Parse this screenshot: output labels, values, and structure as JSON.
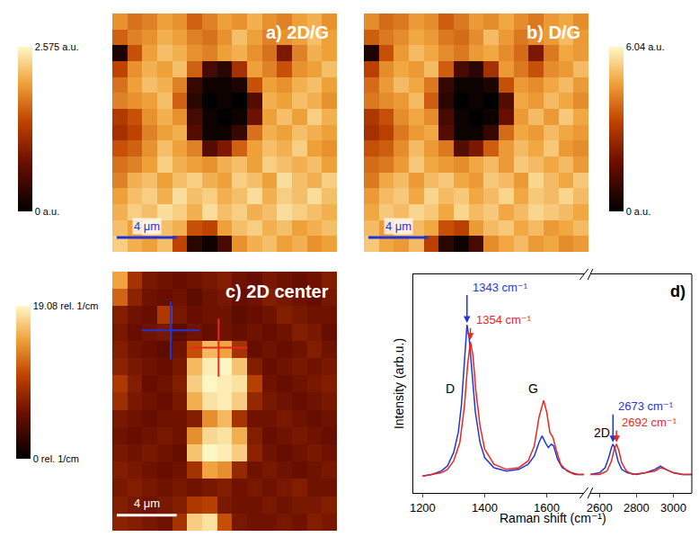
{
  "chart_data": [
    {
      "type": "heatmap",
      "title": "a) 2D/G",
      "xlim": [
        0,
        15
      ],
      "ylim": [
        0,
        15
      ],
      "tick_labels": false,
      "z": [
        [
          1.9,
          1.7,
          1.8,
          2.0,
          1.9,
          1.6,
          1.8,
          2.0,
          1.9,
          2.1,
          1.9,
          1.8,
          2.0,
          2.1,
          1.9
        ],
        [
          1.6,
          1.8,
          1.9,
          2.1,
          2.0,
          1.8,
          1.7,
          1.9,
          2.2,
          2.0,
          1.8,
          1.9,
          2.0,
          2.2,
          2.0
        ],
        [
          0.2,
          1.5,
          2.0,
          2.2,
          2.1,
          1.9,
          1.8,
          2.0,
          2.1,
          1.9,
          1.7,
          0.9,
          1.8,
          2.1,
          2.0
        ],
        [
          1.4,
          1.9,
          2.1,
          2.0,
          2.2,
          1.6,
          0.5,
          0.3,
          1.2,
          2.0,
          1.8,
          1.5,
          1.9,
          2.0,
          2.2
        ],
        [
          1.7,
          2.0,
          2.2,
          2.1,
          1.8,
          0.4,
          0.1,
          0.1,
          0.2,
          1.5,
          2.0,
          1.9,
          2.1,
          2.2,
          2.0
        ],
        [
          1.8,
          1.9,
          2.0,
          2.2,
          1.6,
          0.3,
          0.0,
          0.1,
          0.0,
          0.6,
          2.1,
          2.0,
          2.2,
          2.1,
          1.9
        ],
        [
          1.3,
          1.5,
          1.9,
          2.1,
          1.9,
          0.5,
          0.1,
          0.0,
          0.1,
          0.8,
          2.0,
          2.2,
          2.0,
          2.3,
          2.1
        ],
        [
          1.2,
          1.4,
          1.8,
          2.0,
          2.1,
          0.6,
          0.1,
          0.1,
          0.4,
          1.7,
          2.1,
          2.0,
          2.2,
          2.1,
          2.0
        ],
        [
          1.5,
          1.6,
          1.9,
          2.2,
          2.0,
          1.8,
          0.6,
          0.9,
          1.6,
          2.0,
          2.2,
          2.1,
          2.3,
          2.0,
          1.9
        ],
        [
          1.7,
          1.8,
          2.0,
          2.3,
          2.1,
          2.0,
          1.9,
          2.1,
          2.2,
          2.0,
          2.3,
          2.2,
          2.1,
          2.2,
          2.0
        ],
        [
          1.8,
          2.1,
          2.2,
          2.0,
          2.2,
          2.3,
          2.1,
          2.0,
          2.3,
          2.2,
          2.0,
          2.4,
          2.2,
          2.1,
          2.3
        ],
        [
          2.0,
          2.2,
          2.3,
          2.1,
          2.4,
          2.2,
          2.3,
          2.1,
          2.2,
          2.4,
          2.1,
          2.3,
          2.2,
          2.4,
          2.2
        ],
        [
          2.1,
          2.3,
          2.2,
          2.4,
          2.3,
          2.1,
          2.4,
          2.2,
          2.3,
          2.1,
          2.2,
          2.4,
          2.3,
          2.2,
          2.1
        ],
        [
          2.2,
          2.0,
          2.3,
          2.2,
          2.1,
          1.5,
          1.4,
          2.0,
          2.2,
          2.3,
          2.1,
          2.2,
          2.0,
          2.1,
          2.2
        ],
        [
          2.3,
          2.1,
          2.0,
          2.2,
          1.4,
          0.3,
          0.1,
          0.5,
          1.9,
          2.1,
          2.2,
          2.0,
          2.1,
          1.9,
          2.0
        ]
      ],
      "colorbar": {
        "range": [
          0,
          2.575
        ],
        "ticks": [
          {
            "value": 0,
            "label": "0 a.u."
          },
          {
            "value": 2.575,
            "label": "2.575 a.u."
          }
        ]
      },
      "scale_bar": {
        "length": 4,
        "label": "4 μm",
        "color": "#1f35d8"
      }
    },
    {
      "type": "heatmap",
      "title": "b) D/G",
      "xlim": [
        0,
        15
      ],
      "ylim": [
        0,
        15
      ],
      "tick_labels": false,
      "z": [
        [
          4.4,
          3.9,
          4.1,
          4.6,
          4.4,
          3.7,
          4.1,
          4.6,
          4.4,
          4.8,
          4.4,
          4.1,
          4.6,
          4.8,
          4.4
        ],
        [
          3.7,
          4.1,
          4.4,
          4.8,
          4.6,
          4.1,
          3.9,
          4.4,
          5.1,
          4.6,
          4.1,
          4.4,
          4.6,
          5.1,
          4.6
        ],
        [
          0.5,
          3.5,
          4.6,
          5.1,
          4.8,
          4.4,
          4.1,
          4.6,
          4.8,
          4.4,
          3.9,
          2.1,
          4.1,
          4.8,
          4.6
        ],
        [
          3.2,
          4.4,
          4.8,
          4.6,
          5.1,
          3.7,
          1.2,
          0.7,
          2.8,
          4.6,
          4.1,
          3.5,
          4.4,
          4.6,
          5.1
        ],
        [
          3.9,
          4.6,
          5.1,
          4.8,
          4.1,
          0.9,
          0.2,
          0.2,
          0.5,
          3.5,
          4.6,
          4.4,
          4.8,
          5.1,
          4.6
        ],
        [
          4.1,
          4.4,
          4.6,
          5.1,
          3.7,
          0.7,
          0.0,
          0.2,
          0.0,
          1.4,
          4.8,
          4.6,
          5.1,
          4.8,
          4.4
        ],
        [
          3.0,
          3.5,
          4.4,
          4.8,
          4.4,
          1.2,
          0.2,
          0.0,
          0.2,
          1.8,
          4.6,
          5.1,
          4.6,
          5.3,
          4.8
        ],
        [
          2.8,
          3.2,
          4.1,
          4.6,
          4.8,
          1.4,
          0.2,
          0.2,
          0.9,
          3.9,
          4.8,
          4.6,
          5.1,
          4.8,
          4.6
        ],
        [
          3.5,
          3.7,
          4.4,
          5.1,
          4.6,
          4.1,
          1.4,
          2.1,
          3.7,
          4.6,
          5.1,
          4.8,
          5.3,
          4.6,
          4.4
        ],
        [
          3.9,
          4.1,
          4.6,
          5.3,
          4.8,
          4.6,
          4.4,
          4.8,
          5.1,
          4.6,
          5.3,
          5.1,
          4.8,
          5.1,
          4.6
        ],
        [
          4.1,
          4.8,
          5.1,
          4.6,
          5.1,
          5.3,
          4.8,
          4.6,
          5.3,
          5.1,
          4.6,
          5.5,
          5.1,
          4.8,
          5.3
        ],
        [
          4.6,
          5.1,
          5.3,
          4.8,
          5.5,
          5.1,
          5.3,
          4.8,
          5.1,
          5.5,
          4.8,
          5.3,
          5.1,
          5.5,
          5.1
        ],
        [
          4.8,
          5.3,
          5.1,
          5.5,
          5.3,
          4.8,
          5.5,
          5.1,
          5.3,
          4.8,
          5.1,
          5.5,
          5.3,
          5.1,
          4.8
        ],
        [
          5.1,
          4.6,
          5.3,
          5.1,
          4.8,
          3.5,
          3.2,
          4.6,
          5.1,
          5.3,
          4.8,
          5.1,
          4.6,
          4.8,
          5.1
        ],
        [
          5.3,
          4.8,
          4.6,
          5.1,
          3.2,
          0.7,
          0.2,
          1.2,
          4.4,
          4.8,
          5.1,
          4.6,
          4.8,
          4.4,
          4.6
        ]
      ],
      "colorbar": {
        "range": [
          0,
          6.04
        ],
        "ticks": [
          {
            "value": 0,
            "label": "0 a.u."
          },
          {
            "value": 6.04,
            "label": "6.04 a.u."
          }
        ]
      },
      "scale_bar": {
        "length": 4,
        "label": "4 μm",
        "color": "#1f35d8"
      }
    },
    {
      "type": "heatmap",
      "title": "c) 2D center",
      "xlim": [
        0,
        15
      ],
      "ylim": [
        0,
        15
      ],
      "tick_labels": false,
      "z": [
        [
          15.0,
          9.0,
          6.5,
          6.0,
          5.5,
          6.0,
          6.5,
          7.0,
          6.0,
          5.5,
          6.5,
          6.0,
          5.5,
          6.0,
          7.0
        ],
        [
          12.0,
          7.5,
          6.0,
          5.5,
          6.0,
          5.0,
          6.0,
          6.5,
          5.5,
          6.0,
          7.0,
          6.5,
          6.0,
          5.5,
          6.5
        ],
        [
          7.0,
          6.0,
          5.5,
          9.5,
          6.5,
          5.5,
          6.0,
          6.0,
          5.0,
          5.5,
          6.0,
          7.0,
          6.5,
          6.0,
          6.0
        ],
        [
          6.5,
          5.5,
          6.0,
          6.5,
          5.0,
          6.0,
          5.5,
          6.0,
          5.5,
          6.0,
          5.5,
          6.0,
          7.0,
          6.5,
          5.5
        ],
        [
          7.0,
          6.0,
          5.5,
          5.0,
          6.0,
          11.0,
          16.0,
          15.0,
          9.0,
          5.5,
          6.0,
          5.5,
          6.0,
          7.0,
          6.0
        ],
        [
          7.5,
          6.5,
          6.0,
          5.5,
          6.5,
          16.0,
          18.5,
          19.0,
          16.5,
          7.0,
          5.5,
          6.0,
          6.5,
          6.0,
          6.5
        ],
        [
          9.5,
          7.0,
          5.5,
          6.0,
          7.0,
          17.0,
          19.0,
          18.5,
          18.0,
          10.0,
          6.0,
          5.5,
          6.0,
          6.5,
          7.0
        ],
        [
          8.5,
          6.5,
          6.0,
          5.5,
          6.5,
          15.5,
          18.0,
          18.5,
          17.0,
          8.0,
          6.5,
          6.0,
          5.5,
          6.0,
          6.5
        ],
        [
          6.5,
          6.0,
          5.5,
          6.0,
          6.0,
          7.0,
          14.0,
          16.0,
          9.0,
          6.0,
          6.0,
          6.5,
          6.0,
          5.5,
          6.0
        ],
        [
          6.0,
          5.5,
          6.0,
          6.5,
          6.0,
          14.0,
          17.5,
          18.0,
          15.5,
          7.0,
          5.5,
          6.0,
          6.5,
          6.0,
          5.5
        ],
        [
          6.5,
          6.0,
          6.5,
          6.0,
          5.5,
          16.5,
          19.0,
          18.5,
          17.0,
          7.5,
          6.0,
          5.5,
          6.0,
          6.5,
          6.0
        ],
        [
          7.0,
          6.5,
          6.0,
          5.5,
          6.0,
          9.0,
          15.0,
          14.0,
          8.0,
          6.0,
          6.5,
          6.0,
          5.5,
          6.0,
          6.5
        ],
        [
          6.5,
          7.0,
          6.5,
          6.0,
          6.5,
          6.0,
          6.5,
          7.0,
          6.0,
          6.5,
          6.0,
          6.5,
          7.0,
          6.0,
          6.0
        ],
        [
          7.0,
          6.5,
          6.0,
          6.5,
          7.0,
          9.5,
          10.0,
          6.5,
          6.0,
          6.0,
          6.5,
          6.0,
          6.5,
          6.5,
          7.0
        ],
        [
          7.5,
          7.0,
          6.5,
          6.0,
          9.0,
          17.0,
          18.0,
          11.0,
          6.5,
          6.0,
          6.0,
          6.5,
          6.0,
          7.0,
          6.5
        ]
      ],
      "colorbar": {
        "range": [
          0,
          19.08
        ],
        "ticks": [
          {
            "value": 0,
            "label": "0 rel. 1/cm"
          },
          {
            "value": 19.08,
            "label": "19.08 rel. 1/cm"
          }
        ]
      },
      "scale_bar": {
        "length": 4,
        "label": "4 μm",
        "color": "#ffffff"
      },
      "points": [
        {
          "x": 3.9,
          "y": 3.4,
          "color": "#1f35d8"
        },
        {
          "x": 7.1,
          "y": 4.4,
          "color": "#e8281e"
        }
      ]
    },
    {
      "type": "line",
      "title": "d)",
      "x_label": "Raman shift (cm⁻¹)",
      "y_label": "Intensity (arb.u.)",
      "xlim": [
        1170,
        3100
      ],
      "x_break": [
        1720,
        2550
      ],
      "xticks": [
        1200,
        1400,
        1600,
        2600,
        2800,
        3000
      ],
      "ylim": [
        0,
        1.3
      ],
      "tick_labels": "x",
      "series": [
        {
          "color": "#1f35d8",
          "x": [
            1200,
            1230,
            1260,
            1280,
            1300,
            1315,
            1325,
            1335,
            1343,
            1350,
            1360,
            1370,
            1385,
            1400,
            1430,
            1470,
            1510,
            1540,
            1560,
            1575,
            1585,
            1595,
            1605,
            1615,
            1622,
            1635,
            1650,
            1680,
            1700,
            1720,
            2550,
            2600,
            2630,
            2650,
            2665,
            2673,
            2685,
            2700,
            2720,
            2750,
            2800,
            2850,
            2900,
            2930,
            2960,
            3000,
            3050,
            3100
          ],
          "values": [
            0.1,
            0.11,
            0.13,
            0.16,
            0.24,
            0.36,
            0.52,
            0.78,
            1.0,
            0.92,
            0.7,
            0.48,
            0.3,
            0.21,
            0.15,
            0.13,
            0.14,
            0.17,
            0.22,
            0.3,
            0.34,
            0.3,
            0.27,
            0.29,
            0.28,
            0.2,
            0.15,
            0.12,
            0.11,
            0.11,
            0.11,
            0.12,
            0.15,
            0.21,
            0.27,
            0.29,
            0.26,
            0.19,
            0.14,
            0.12,
            0.11,
            0.12,
            0.14,
            0.16,
            0.14,
            0.12,
            0.11,
            0.11
          ]
        },
        {
          "color": "#e8281e",
          "x": [
            1200,
            1230,
            1260,
            1280,
            1300,
            1320,
            1335,
            1345,
            1354,
            1362,
            1372,
            1385,
            1400,
            1430,
            1470,
            1510,
            1540,
            1560,
            1575,
            1590,
            1600,
            1610,
            1620,
            1630,
            1645,
            1665,
            1690,
            1720,
            2550,
            2600,
            2640,
            2665,
            2680,
            2692,
            2705,
            2720,
            2745,
            2780,
            2850,
            2900,
            2930,
            2960,
            3000,
            3050,
            3100
          ],
          "values": [
            0.1,
            0.11,
            0.12,
            0.14,
            0.19,
            0.3,
            0.52,
            0.76,
            0.9,
            0.82,
            0.6,
            0.4,
            0.26,
            0.17,
            0.14,
            0.15,
            0.19,
            0.28,
            0.45,
            0.55,
            0.48,
            0.36,
            0.33,
            0.26,
            0.17,
            0.13,
            0.11,
            0.11,
            0.11,
            0.11,
            0.13,
            0.19,
            0.26,
            0.29,
            0.25,
            0.18,
            0.13,
            0.11,
            0.12,
            0.13,
            0.15,
            0.14,
            0.12,
            0.11,
            0.11
          ]
        }
      ],
      "peak_labels": [
        {
          "x": 1343,
          "y": 1.0,
          "label": "1343 cm⁻¹",
          "color": "#1f35d8"
        },
        {
          "x": 1354,
          "y": 0.9,
          "label": "1354 cm⁻¹",
          "color": "#e8281e"
        },
        {
          "x": 2673,
          "y": 0.29,
          "label": "2673 cm⁻¹",
          "color": "#1f35d8"
        },
        {
          "x": 2692,
          "y": 0.29,
          "label": "2692 cm⁻¹",
          "color": "#e8281e"
        }
      ],
      "annotations": [
        {
          "x": 1290,
          "y": 0.62,
          "text": "D"
        },
        {
          "x": 1555,
          "y": 0.62,
          "text": "G"
        },
        {
          "x": 2612,
          "y": 0.36,
          "text": "2D"
        }
      ]
    }
  ]
}
